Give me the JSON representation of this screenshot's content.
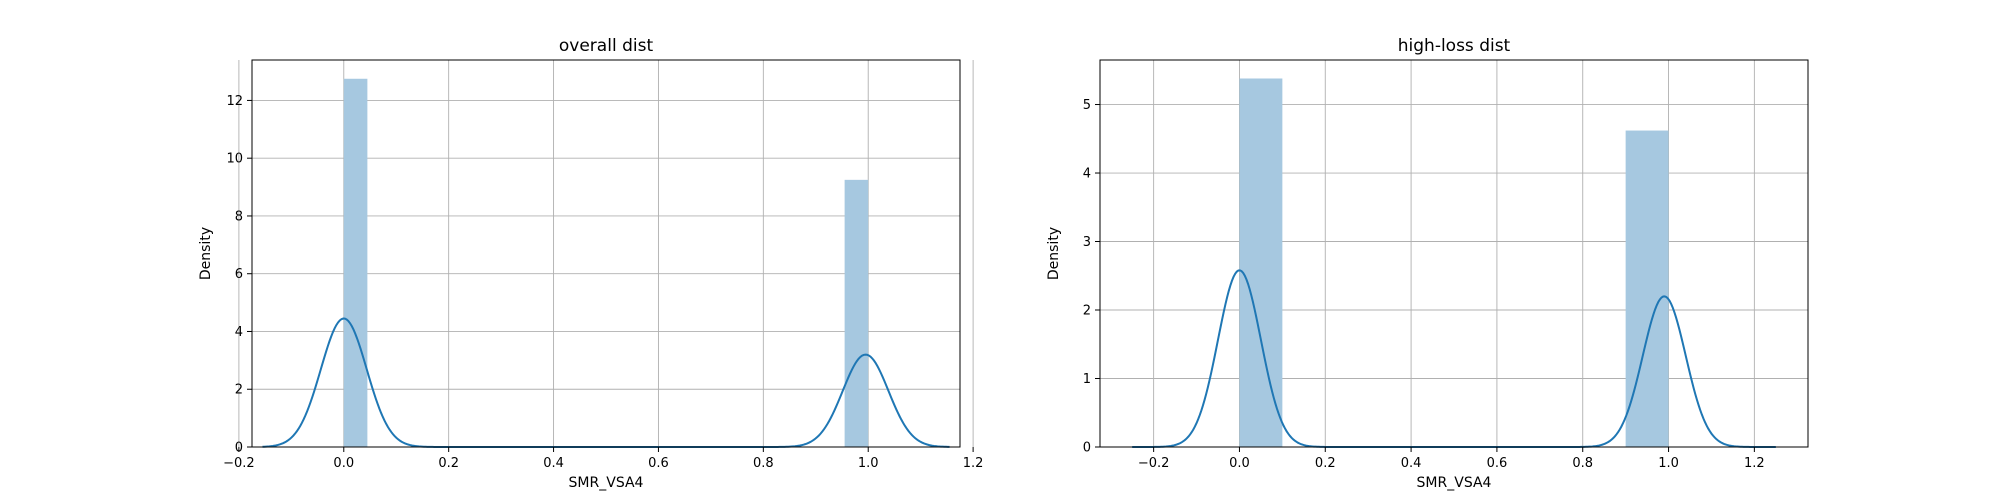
{
  "chart_data": [
    {
      "type": "bar",
      "overlay": "kde-line",
      "title": "overall dist",
      "xlabel": "SMR_VSA4",
      "ylabel": "Density",
      "xlim": [
        -0.175,
        1.175
      ],
      "ylim": [
        0,
        13.4
      ],
      "xticks": [
        -0.2,
        0.0,
        0.2,
        0.4,
        0.6,
        0.8,
        1.0,
        1.2
      ],
      "xtick_labels": [
        "−0.2",
        "0.0",
        "0.2",
        "0.4",
        "0.6",
        "0.8",
        "1.0",
        "1.2"
      ],
      "yticks": [
        0,
        2,
        4,
        6,
        8,
        10,
        12
      ],
      "ytick_labels": [
        "0",
        "2",
        "4",
        "6",
        "8",
        "10",
        "12"
      ],
      "grid": true,
      "bars": [
        {
          "x0": 0.0,
          "x1": 0.045,
          "value": 12.75
        },
        {
          "x0": 0.955,
          "x1": 1.0,
          "value": 9.25
        }
      ],
      "kde": {
        "x_min": -0.155,
        "x_max": 1.155,
        "peaks": [
          {
            "x": 0.0,
            "height": 4.45
          },
          {
            "x": 0.995,
            "height": 3.2
          }
        ]
      },
      "colors": {
        "bar": "#a6c8e0",
        "line": "#1f77b4"
      }
    },
    {
      "type": "bar",
      "overlay": "kde-line",
      "title": "high-loss dist",
      "xlabel": "SMR_VSA4",
      "ylabel": "Density",
      "xlim": [
        -0.325,
        1.325
      ],
      "ylim": [
        0,
        5.65
      ],
      "xticks": [
        -0.2,
        0.0,
        0.2,
        0.4,
        0.6,
        0.8,
        1.0,
        1.2
      ],
      "xtick_labels": [
        "−0.2",
        "0.0",
        "0.2",
        "0.4",
        "0.6",
        "0.8",
        "1.0",
        "1.2"
      ],
      "yticks": [
        0,
        1,
        2,
        3,
        4,
        5
      ],
      "ytick_labels": [
        "0",
        "1",
        "2",
        "3",
        "4",
        "5"
      ],
      "grid": true,
      "bars": [
        {
          "x0": 0.0,
          "x1": 0.1,
          "value": 5.38
        },
        {
          "x0": 0.9,
          "x1": 1.0,
          "value": 4.62
        }
      ],
      "kde": {
        "x_min": -0.25,
        "x_max": 1.25,
        "peaks": [
          {
            "x": 0.0,
            "height": 2.58
          },
          {
            "x": 0.99,
            "height": 2.2
          }
        ]
      },
      "colors": {
        "bar": "#a6c8e0",
        "line": "#1f77b4"
      }
    }
  ]
}
